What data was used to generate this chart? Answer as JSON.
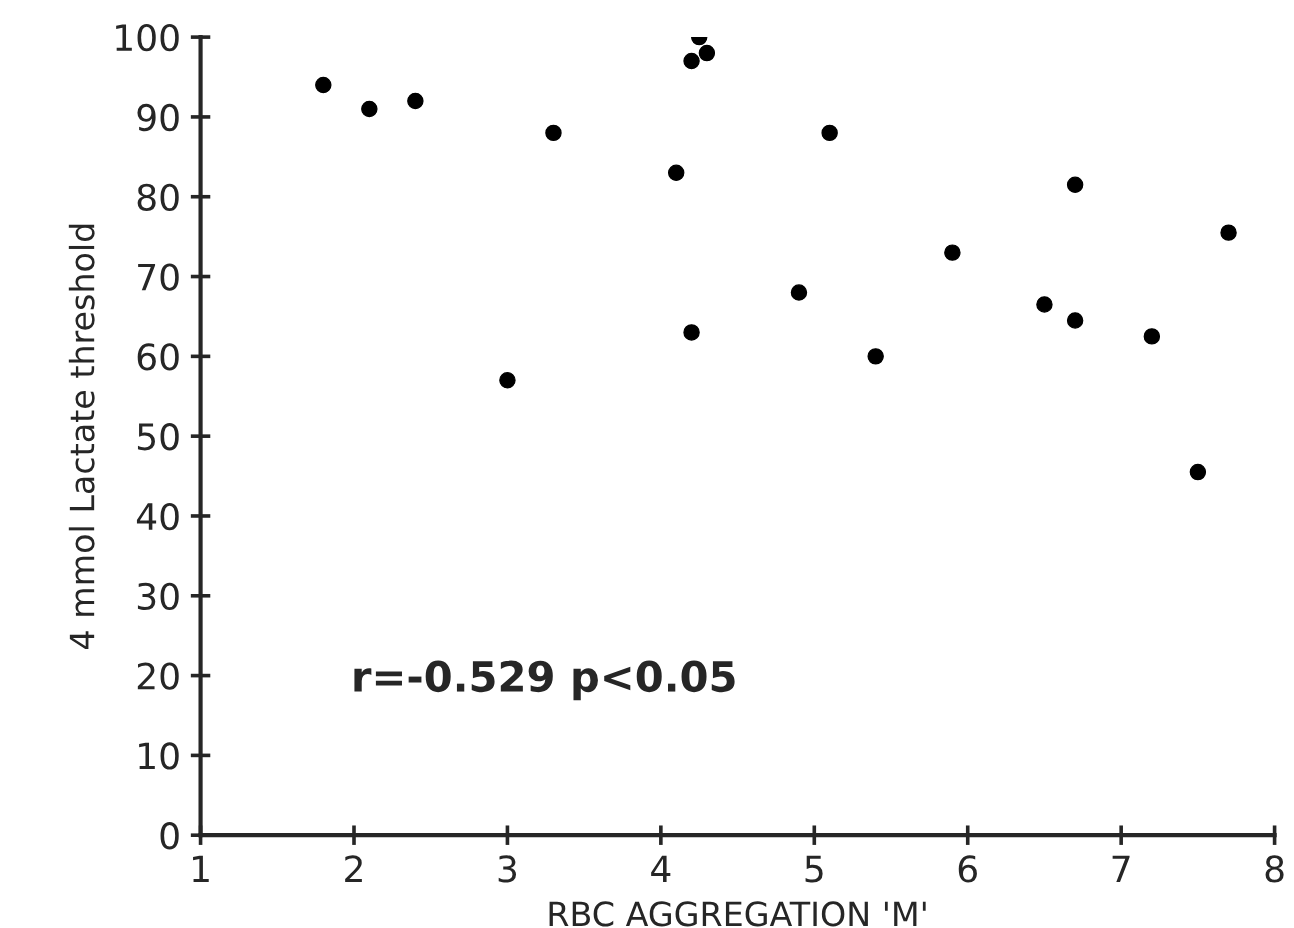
{
  "chart_data": {
    "type": "scatter",
    "xlabel": "RBC AGGREGATION 'M'",
    "ylabel": "4 mmol Lactate threshold",
    "x": [
      1.8,
      2.1,
      2.4,
      3.0,
      3.3,
      4.1,
      4.2,
      4.25,
      4.3,
      4.2,
      4.9,
      5.1,
      5.4,
      5.9,
      6.5,
      6.7,
      6.7,
      7.2,
      7.5,
      7.7
    ],
    "values": [
      94,
      91,
      92,
      57,
      88,
      83,
      97,
      100,
      98,
      63,
      68,
      88,
      60,
      73,
      66.5,
      64.5,
      81.5,
      62.5,
      45.5,
      75.5
    ],
    "color": "#000000",
    "marker": "circle",
    "xlim": [
      1,
      8
    ],
    "xticks": [
      1,
      2,
      3,
      4,
      5,
      6,
      7,
      8
    ],
    "ylim": [
      0,
      100
    ],
    "yticks": [
      0,
      10,
      20,
      30,
      40,
      50,
      60,
      70,
      80,
      90,
      100
    ],
    "annotations": [
      "r=-0.529 p<0.05"
    ],
    "grid": false,
    "legend": false
  }
}
